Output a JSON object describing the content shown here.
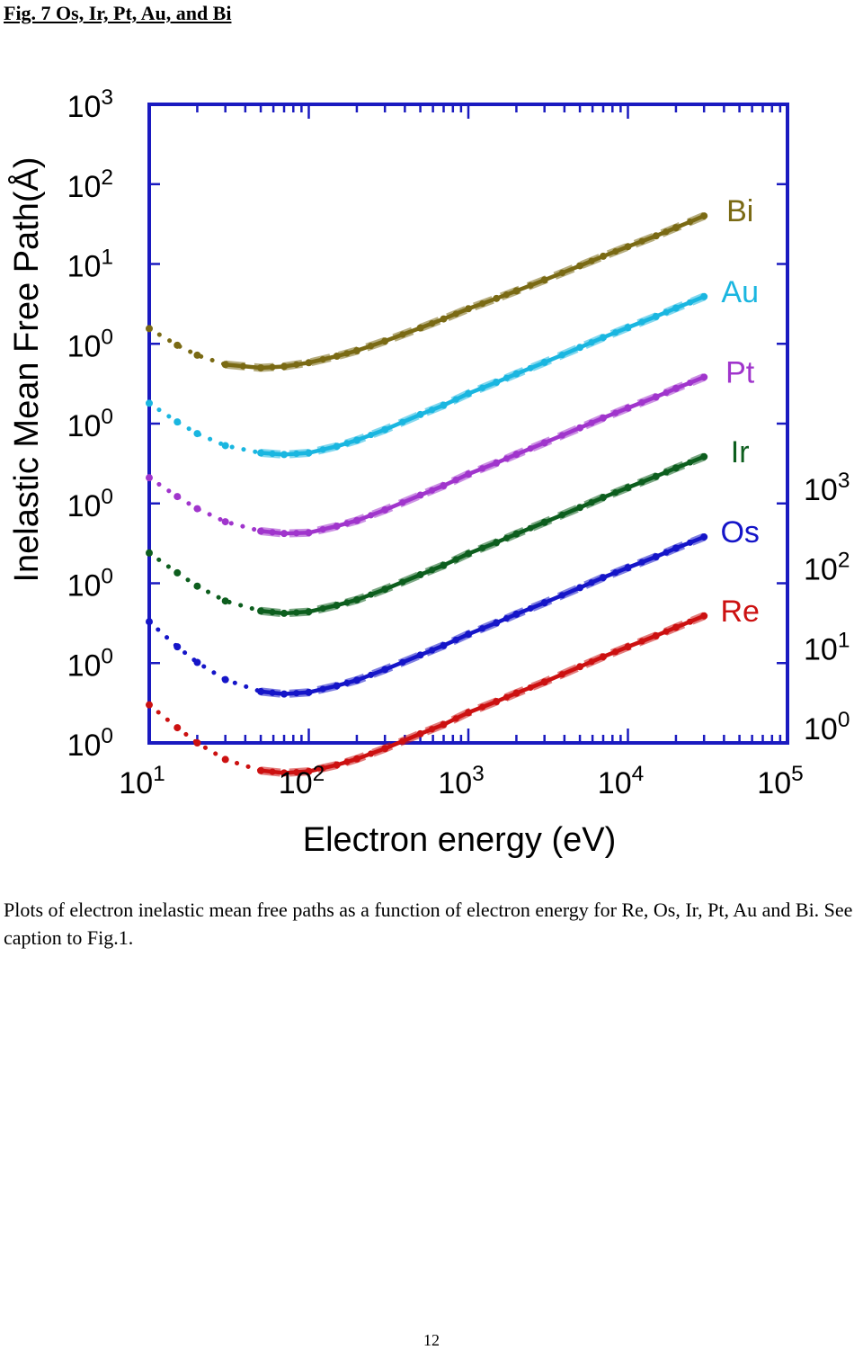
{
  "figure": {
    "title": "Fig. 7  Os, Ir, Pt, Au, and Bi",
    "caption": "Plots of electron inelastic mean free paths as a function of electron energy for Re, Os, Ir, Pt, Au and Bi. See caption to Fig.1.",
    "page_number": "12"
  },
  "chart_data": {
    "type": "line",
    "title": "",
    "xlabel": "Electron energy (eV)",
    "ylabel": "Inelastic Mean Free Path(Å)",
    "x_scale": "log",
    "xlim_exp": [
      1,
      5
    ],
    "x_ticks": [
      {
        "base": "10",
        "exp": "1"
      },
      {
        "base": "10",
        "exp": "2"
      },
      {
        "base": "10",
        "exp": "3"
      },
      {
        "base": "10",
        "exp": "4"
      },
      {
        "base": "10",
        "exp": "5"
      }
    ],
    "y_scale": "log, curves vertically offset by one decade each",
    "ylim_exp": [
      0,
      8
    ],
    "left_y_ticks": [
      {
        "base": "10",
        "exp": "0"
      },
      {
        "base": "10",
        "exp": "0"
      },
      {
        "base": "10",
        "exp": "0"
      },
      {
        "base": "10",
        "exp": "0"
      },
      {
        "base": "10",
        "exp": "0"
      },
      {
        "base": "10",
        "exp": "0"
      },
      {
        "base": "10",
        "exp": "1"
      },
      {
        "base": "10",
        "exp": "2"
      },
      {
        "base": "10",
        "exp": "3"
      }
    ],
    "right_y_ticks": [
      {
        "base": "10",
        "exp": "0"
      },
      {
        "base": "10",
        "exp": "1"
      },
      {
        "base": "10",
        "exp": "2"
      },
      {
        "base": "10",
        "exp": "3"
      }
    ],
    "x_points_eV": [
      10,
      15,
      20,
      30,
      50,
      70,
      100,
      150,
      200,
      300,
      500,
      700,
      1000,
      1500,
      2000,
      3000,
      5000,
      7000,
      10000,
      15000,
      20000,
      30000
    ],
    "series": [
      {
        "name": "Re",
        "color": "#cc1111",
        "offset_decades": 0,
        "imfp": [
          3.0,
          1.55,
          1.0,
          0.62,
          0.45,
          0.42,
          0.44,
          0.53,
          0.63,
          0.85,
          1.3,
          1.7,
          2.4,
          3.3,
          4.2,
          5.8,
          9.0,
          12.0,
          16.0,
          22.0,
          28.0,
          39.0
        ]
      },
      {
        "name": "Os",
        "color": "#1515c8",
        "offset_decades": 1,
        "imfp": [
          3.3,
          1.6,
          1.02,
          0.62,
          0.44,
          0.41,
          0.43,
          0.52,
          0.61,
          0.83,
          1.26,
          1.66,
          2.3,
          3.2,
          4.1,
          5.7,
          8.8,
          11.8,
          15.7,
          21.5,
          27.5,
          38.0
        ]
      },
      {
        "name": "Ir",
        "color": "#0d5e1e",
        "offset_decades": 2,
        "imfp": [
          2.4,
          1.35,
          0.92,
          0.6,
          0.45,
          0.42,
          0.44,
          0.53,
          0.62,
          0.84,
          1.28,
          1.68,
          2.35,
          3.25,
          4.15,
          5.8,
          8.9,
          11.9,
          15.8,
          21.8,
          27.8,
          38.5
        ]
      },
      {
        "name": "Pt",
        "color": "#a035cc",
        "offset_decades": 3,
        "imfp": [
          2.1,
          1.22,
          0.86,
          0.59,
          0.45,
          0.42,
          0.43,
          0.52,
          0.61,
          0.83,
          1.27,
          1.67,
          2.33,
          3.22,
          4.12,
          5.75,
          8.85,
          11.8,
          15.7,
          21.6,
          27.6,
          38.2
        ]
      },
      {
        "name": "Au",
        "color": "#1ab6e0",
        "offset_decades": 4,
        "imfp": [
          1.8,
          1.05,
          0.75,
          0.53,
          0.43,
          0.41,
          0.43,
          0.52,
          0.62,
          0.84,
          1.3,
          1.7,
          2.38,
          3.3,
          4.2,
          5.85,
          9.0,
          12.0,
          16.0,
          22.0,
          28.0,
          39.0
        ]
      },
      {
        "name": "Bi",
        "color": "#7a6a14",
        "offset_decades": 5,
        "imfp": [
          1.55,
          0.96,
          0.72,
          0.55,
          0.5,
          0.52,
          0.58,
          0.7,
          0.82,
          1.08,
          1.58,
          2.05,
          2.75,
          3.7,
          4.6,
          6.3,
          9.5,
          12.5,
          16.5,
          22.5,
          28.5,
          40.0
        ]
      }
    ],
    "legend_style": "series names placed at the right end of each curve",
    "grid": false
  }
}
